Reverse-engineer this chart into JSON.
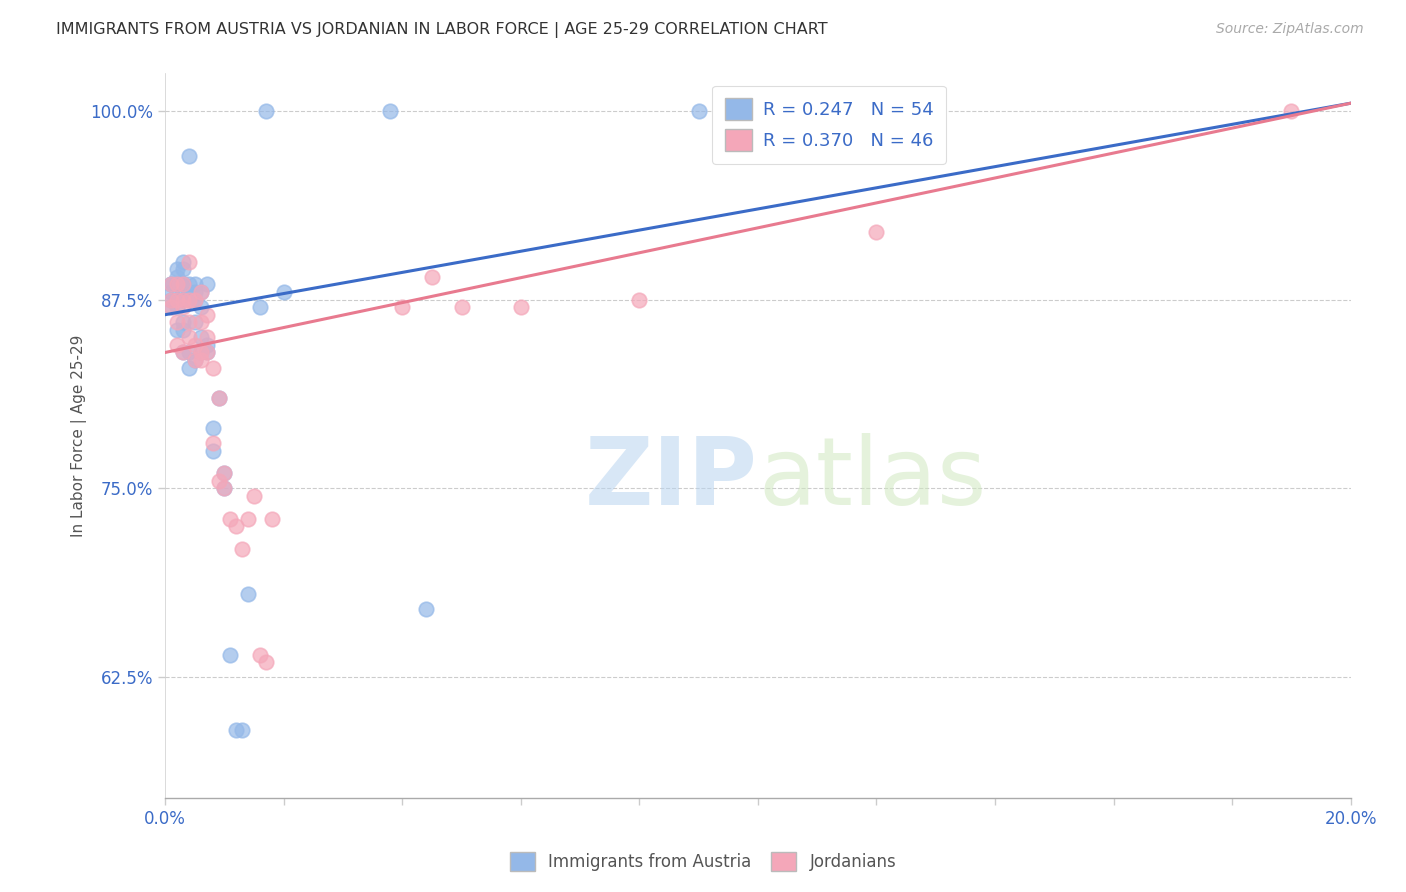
{
  "title": "IMMIGRANTS FROM AUSTRIA VS JORDANIAN IN LABOR FORCE | AGE 25-29 CORRELATION CHART",
  "source": "Source: ZipAtlas.com",
  "ylabel": "In Labor Force | Age 25-29",
  "xlim": [
    0.0,
    0.2
  ],
  "ylim": [
    0.545,
    1.025
  ],
  "xticks": [
    0.0,
    0.02,
    0.04,
    0.06,
    0.08,
    0.1,
    0.12,
    0.14,
    0.16,
    0.18,
    0.2
  ],
  "xtick_labels": [
    "0.0%",
    "",
    "",
    "",
    "",
    "",
    "",
    "",
    "",
    "",
    "20.0%"
  ],
  "yticks": [
    0.625,
    0.75,
    0.875,
    1.0
  ],
  "ytick_labels": [
    "62.5%",
    "75.0%",
    "87.5%",
    "100.0%"
  ],
  "austria_R": 0.247,
  "austria_N": 54,
  "jordan_R": 0.37,
  "jordan_N": 46,
  "austria_color": "#94b8e8",
  "jordan_color": "#f4a7b9",
  "austria_line_color": "#3b6bc7",
  "jordan_line_color": "#e87a8f",
  "watermark_zip": "ZIP",
  "watermark_atlas": "atlas",
  "austria_x": [
    0.001,
    0.001,
    0.001,
    0.001,
    0.001,
    0.002,
    0.002,
    0.002,
    0.002,
    0.002,
    0.002,
    0.002,
    0.003,
    0.003,
    0.003,
    0.003,
    0.003,
    0.003,
    0.003,
    0.003,
    0.003,
    0.004,
    0.004,
    0.004,
    0.004,
    0.004,
    0.004,
    0.005,
    0.005,
    0.005,
    0.005,
    0.005,
    0.006,
    0.006,
    0.006,
    0.006,
    0.007,
    0.007,
    0.007,
    0.008,
    0.008,
    0.009,
    0.01,
    0.01,
    0.011,
    0.012,
    0.013,
    0.014,
    0.016,
    0.017,
    0.02,
    0.038,
    0.044,
    0.09
  ],
  "austria_y": [
    0.87,
    0.875,
    0.88,
    0.885,
    0.885,
    0.855,
    0.87,
    0.875,
    0.885,
    0.885,
    0.89,
    0.895,
    0.84,
    0.855,
    0.86,
    0.875,
    0.88,
    0.885,
    0.885,
    0.895,
    0.9,
    0.83,
    0.84,
    0.875,
    0.88,
    0.885,
    0.97,
    0.835,
    0.86,
    0.875,
    0.88,
    0.885,
    0.84,
    0.85,
    0.87,
    0.88,
    0.84,
    0.845,
    0.885,
    0.775,
    0.79,
    0.81,
    0.75,
    0.76,
    0.64,
    0.59,
    0.59,
    0.68,
    0.87,
    1.0,
    0.88,
    1.0,
    0.67,
    1.0
  ],
  "jordan_x": [
    0.001,
    0.001,
    0.001,
    0.002,
    0.002,
    0.002,
    0.002,
    0.003,
    0.003,
    0.003,
    0.003,
    0.004,
    0.004,
    0.004,
    0.004,
    0.005,
    0.005,
    0.005,
    0.006,
    0.006,
    0.006,
    0.006,
    0.007,
    0.007,
    0.007,
    0.008,
    0.008,
    0.009,
    0.009,
    0.01,
    0.01,
    0.011,
    0.012,
    0.013,
    0.014,
    0.015,
    0.016,
    0.017,
    0.018,
    0.04,
    0.045,
    0.05,
    0.06,
    0.08,
    0.12,
    0.19
  ],
  "jordan_y": [
    0.87,
    0.875,
    0.885,
    0.845,
    0.86,
    0.875,
    0.885,
    0.84,
    0.87,
    0.875,
    0.885,
    0.85,
    0.86,
    0.875,
    0.9,
    0.835,
    0.845,
    0.875,
    0.835,
    0.84,
    0.86,
    0.88,
    0.84,
    0.85,
    0.865,
    0.78,
    0.83,
    0.755,
    0.81,
    0.75,
    0.76,
    0.73,
    0.725,
    0.71,
    0.73,
    0.745,
    0.64,
    0.635,
    0.73,
    0.87,
    0.89,
    0.87,
    0.87,
    0.875,
    0.92,
    1.0
  ],
  "austria_trend": [
    0.0,
    0.2
  ],
  "austria_trend_y": [
    0.865,
    1.005
  ],
  "jordan_trend": [
    0.0,
    0.2
  ],
  "jordan_trend_y": [
    0.84,
    1.005
  ]
}
